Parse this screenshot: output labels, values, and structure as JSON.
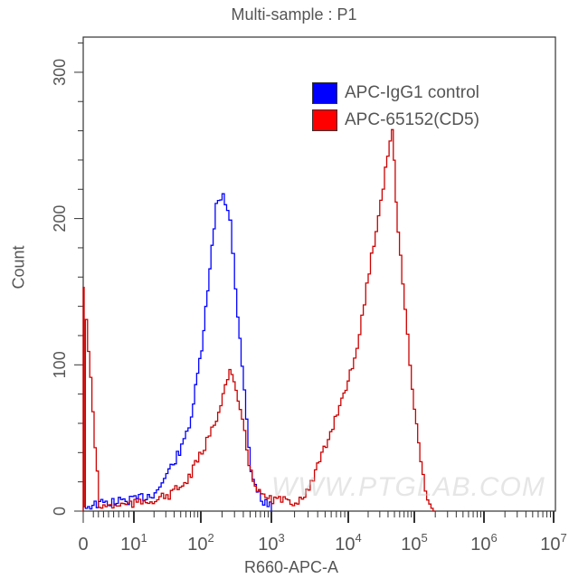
{
  "chart_data": {
    "type": "line",
    "title": "Multi-sample : P1",
    "xlabel": "R660-APC-A",
    "ylabel": "Count",
    "xscale": "biexponential/log",
    "x_ticks": [
      "0",
      "10^1",
      "10^2",
      "10^3",
      "10^4",
      "10^5",
      "10^6",
      "10^7"
    ],
    "y_ticks": [
      0,
      100,
      200,
      300
    ],
    "ylim": [
      0,
      320
    ],
    "legend_position": "upper right",
    "series": [
      {
        "name": "APC-IgG1 control",
        "color": "#0000ff",
        "x": [
          0,
          3,
          10,
          20,
          30,
          50,
          70,
          100,
          130,
          160,
          200,
          250,
          300,
          400,
          500,
          700,
          1000
        ],
        "values": [
          3,
          5,
          8,
          12,
          25,
          43,
          65,
          111,
          164,
          210,
          218,
          198,
          152,
          84,
          25,
          8,
          2
        ]
      },
      {
        "name": "APC-65152(CD5)",
        "color": "#cc0000",
        "x": [
          0,
          3,
          10,
          30,
          60,
          100,
          150,
          200,
          250,
          350,
          500,
          700,
          1000,
          2000,
          3000,
          5000,
          8000,
          12000,
          20000,
          30000,
          45000,
          55000,
          70000,
          90000,
          120000,
          150000,
          200000
        ],
        "values": [
          153,
          3,
          5,
          10,
          20,
          40,
          59,
          80,
          96,
          70,
          25,
          10,
          8,
          6,
          15,
          45,
          77,
          102,
          164,
          213,
          263,
          189,
          139,
          84,
          34,
          5,
          0
        ]
      }
    ]
  },
  "title": "Multi-sample : P1",
  "axes": {
    "xlabel": "R660-APC-A",
    "ylabel": "Count",
    "x_ticks": [
      {
        "base": "0",
        "exp": ""
      },
      {
        "base": "10",
        "exp": "1"
      },
      {
        "base": "10",
        "exp": "2"
      },
      {
        "base": "10",
        "exp": "3"
      },
      {
        "base": "10",
        "exp": "4"
      },
      {
        "base": "10",
        "exp": "5"
      },
      {
        "base": "10",
        "exp": "6"
      },
      {
        "base": "10",
        "exp": "7"
      }
    ],
    "y_ticks": [
      "0",
      "100",
      "200",
      "300"
    ]
  },
  "legend": {
    "items": [
      {
        "label": "APC-IgG1 control",
        "color": "#0000ff"
      },
      {
        "label": "APC-65152(CD5)",
        "color": "#ff0000"
      }
    ]
  },
  "watermark": "WWW.PTGLAB.COM"
}
